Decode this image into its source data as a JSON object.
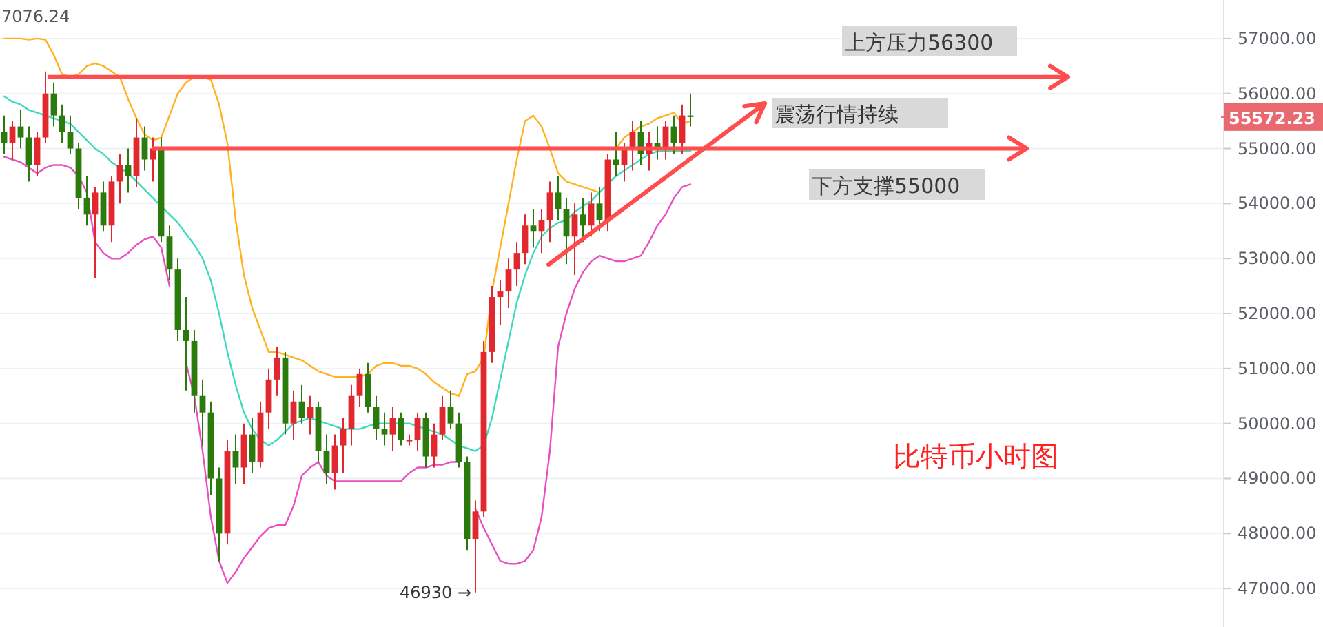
{
  "chart_data": {
    "type": "candlestick",
    "categories": [
      null,
      null,
      null,
      null,
      null,
      null,
      null,
      null,
      null,
      null,
      null,
      null,
      null,
      null,
      null,
      null,
      null,
      null,
      null,
      null,
      null,
      null,
      null,
      null,
      null,
      null,
      null,
      null,
      null,
      null,
      null,
      null,
      null,
      null,
      null,
      null,
      null,
      null,
      null,
      null,
      null,
      null,
      null,
      null,
      null,
      null,
      null,
      null,
      null,
      null,
      null,
      null,
      null,
      null,
      null,
      null,
      null,
      null,
      null,
      null,
      null,
      null,
      null,
      null,
      null,
      null,
      null,
      null,
      null,
      null,
      null,
      null,
      null,
      null,
      null,
      null,
      null,
      null,
      null,
      null,
      null,
      null,
      null,
      null,
      null,
      null,
      null,
      null,
      null,
      null,
      null,
      null,
      null,
      null,
      null,
      null,
      null,
      null,
      null,
      null,
      null,
      null,
      null,
      null,
      null,
      null,
      null,
      null,
      null,
      null,
      null,
      null,
      null,
      null,
      null,
      null,
      null,
      null,
      null,
      null,
      null,
      null,
      null,
      null,
      null,
      null,
      null,
      null,
      null,
      null,
      null,
      null,
      null,
      null,
      null,
      null,
      null,
      null,
      null,
      null,
      null,
      null,
      null,
      null,
      null,
      null,
      null,
      null
    ],
    "ohlc": [
      [
        55300,
        55600,
        54900,
        55100
      ],
      [
        55100,
        55500,
        54800,
        55400
      ],
      [
        55400,
        55700,
        55000,
        55200
      ],
      [
        55200,
        55400,
        54400,
        54700
      ],
      [
        54700,
        55300,
        54500,
        55200
      ],
      [
        55200,
        56400,
        55100,
        56000
      ],
      [
        56000,
        56200,
        55400,
        55600
      ],
      [
        55600,
        55800,
        55100,
        55300
      ],
      [
        55300,
        55600,
        54900,
        55000
      ],
      [
        55000,
        55100,
        53900,
        54100
      ],
      [
        54100,
        54500,
        53600,
        53800
      ],
      [
        53800,
        54300,
        52650,
        54200
      ],
      [
        54200,
        54400,
        53500,
        53600
      ],
      [
        53600,
        54500,
        53300,
        54400
      ],
      [
        54400,
        54900,
        54000,
        54700
      ],
      [
        54700,
        55000,
        54200,
        54500
      ],
      [
        54500,
        55550,
        54300,
        55200
      ],
      [
        55200,
        55400,
        54600,
        54800
      ],
      [
        54800,
        55200,
        54400,
        55000
      ],
      [
        55000,
        55200,
        53300,
        53400
      ],
      [
        53400,
        53600,
        52600,
        52800
      ],
      [
        52800,
        53000,
        51500,
        51700
      ],
      [
        51700,
        52300,
        50600,
        51500
      ],
      [
        51500,
        51700,
        50200,
        50500
      ],
      [
        50500,
        50800,
        49600,
        50200
      ],
      [
        50200,
        50400,
        48700,
        49000
      ],
      [
        49000,
        49200,
        47500,
        48000
      ],
      [
        48000,
        49700,
        47800,
        49500
      ],
      [
        49500,
        49800,
        48900,
        49200
      ],
      [
        49200,
        50000,
        48900,
        49800
      ],
      [
        49800,
        50100,
        49100,
        49300
      ],
      [
        49300,
        50400,
        49200,
        50200
      ],
      [
        50200,
        51000,
        49900,
        50800
      ],
      [
        50800,
        51400,
        50500,
        51200
      ],
      [
        51200,
        51300,
        49800,
        50000
      ],
      [
        50000,
        50600,
        49700,
        50400
      ],
      [
        50400,
        50700,
        50000,
        50100
      ],
      [
        50100,
        50500,
        49800,
        50300
      ],
      [
        50300,
        50400,
        49300,
        49500
      ],
      [
        49500,
        49800,
        48900,
        49100
      ],
      [
        49100,
        49800,
        48800,
        49600
      ],
      [
        49600,
        50100,
        49100,
        49900
      ],
      [
        49900,
        50700,
        49600,
        50500
      ],
      [
        50500,
        51000,
        50300,
        50900
      ],
      [
        50900,
        51100,
        50200,
        50300
      ],
      [
        50300,
        50500,
        49700,
        49900
      ],
      [
        49900,
        50200,
        49600,
        49800
      ],
      [
        49800,
        50300,
        49500,
        50100
      ],
      [
        50100,
        50200,
        49600,
        49700
      ],
      [
        49700,
        49800,
        49600,
        49700
      ],
      [
        49700,
        50200,
        49500,
        50100
      ],
      [
        50100,
        50200,
        49200,
        49400
      ],
      [
        49400,
        50000,
        49200,
        49800
      ],
      [
        49800,
        50500,
        49700,
        50300
      ],
      [
        50300,
        50600,
        49900,
        50000
      ],
      [
        50000,
        50200,
        49200,
        49300
      ],
      [
        49300,
        49400,
        47700,
        47900
      ],
      [
        47900,
        48600,
        46930,
        48400
      ],
      [
        48400,
        51500,
        48300,
        51300
      ],
      [
        51300,
        52500,
        51100,
        52300
      ],
      [
        52300,
        52600,
        51800,
        52400
      ],
      [
        52400,
        53000,
        52100,
        52800
      ],
      [
        52800,
        53300,
        52500,
        53100
      ],
      [
        53100,
        53800,
        52900,
        53600
      ],
      [
        53600,
        53900,
        53200,
        53500
      ],
      [
        53500,
        53900,
        53100,
        53700
      ],
      [
        53700,
        54400,
        53300,
        54200
      ],
      [
        54200,
        54500,
        53700,
        53900
      ],
      [
        53900,
        54100,
        52900,
        53400
      ],
      [
        53400,
        54000,
        52700,
        53800
      ],
      [
        53800,
        54100,
        53300,
        53600
      ],
      [
        53600,
        54200,
        53400,
        54000
      ],
      [
        54000,
        54300,
        53500,
        53700
      ],
      [
        53700,
        54900,
        53500,
        54800
      ],
      [
        54800,
        55300,
        54500,
        54700
      ],
      [
        54700,
        55100,
        54400,
        55000
      ],
      [
        55000,
        55500,
        54600,
        55300
      ],
      [
        55300,
        55500,
        54700,
        54900
      ],
      [
        54900,
        55300,
        54600,
        55100
      ],
      [
        55100,
        55400,
        54800,
        55000
      ],
      [
        55000,
        55500,
        54800,
        55400
      ],
      [
        55400,
        55600,
        54900,
        55100
      ],
      [
        55100,
        55800,
        54900,
        55600
      ],
      [
        55600,
        56000,
        55400,
        55572.23
      ],
      null,
      null,
      null,
      null,
      null,
      null,
      null,
      null,
      null,
      null,
      null,
      null,
      null,
      null,
      null,
      null,
      null,
      null,
      null,
      null,
      null,
      null,
      null,
      null,
      null,
      null,
      null,
      null,
      null,
      null,
      null,
      null,
      null,
      null,
      null,
      null,
      null,
      null,
      null,
      null,
      null,
      null,
      null,
      null,
      null,
      null,
      null,
      null,
      null,
      null,
      null,
      null,
      null,
      null,
      null,
      null,
      null,
      null,
      null,
      null,
      null,
      null,
      null,
      null
    ],
    "series": [
      {
        "type": "line",
        "color": "#ffb21d",
        "values": [
          57000,
          57000,
          57000,
          56980,
          57000,
          56980,
          56700,
          56350,
          56300,
          56350,
          56500,
          56550,
          56500,
          56400,
          56300,
          55900,
          55550,
          55250,
          55150,
          55200,
          55600,
          56000,
          56200,
          56300,
          56300,
          56250,
          55800,
          55100,
          53700,
          52700,
          52100,
          51700,
          51300,
          51300,
          51250,
          51200,
          51150,
          51050,
          50950,
          50900,
          50850,
          50850,
          50850,
          50850,
          50900,
          51050,
          51100,
          51100,
          51050,
          51050,
          51000,
          50900,
          50750,
          50650,
          50550,
          50500,
          50900,
          50950,
          51200,
          52400,
          53200,
          54000,
          54800,
          55500,
          55600,
          55400,
          55000,
          54550,
          54400,
          54350,
          54300,
          54250,
          54200,
          null,
          55000,
          55200,
          55300,
          55400,
          55450,
          55550,
          55600,
          55650,
          55450,
          55500,
          null,
          null,
          null,
          null,
          null,
          null,
          null,
          null,
          null,
          null,
          null,
          null,
          null,
          null,
          null,
          null,
          null,
          null,
          null,
          null,
          null,
          null,
          null,
          null,
          null,
          null,
          null,
          null,
          null,
          null,
          null,
          null,
          null,
          null,
          null,
          null,
          null,
          null,
          null,
          null,
          null,
          null,
          null,
          null,
          null,
          null,
          null,
          null,
          null,
          null,
          null,
          null,
          null,
          null,
          null,
          null,
          null,
          null,
          null,
          null,
          null,
          null,
          null,
          null
        ]
      },
      {
        "type": "line",
        "color": "#40d9c0",
        "values": [
          55950,
          55850,
          55800,
          55700,
          55650,
          55600,
          55550,
          55500,
          55450,
          55300,
          55150,
          55000,
          54900,
          54750,
          54650,
          54550,
          54400,
          54250,
          54100,
          53950,
          53800,
          53650,
          53450,
          53250,
          53000,
          52600,
          52000,
          51300,
          50700,
          50200,
          49900,
          49700,
          49600,
          49700,
          49850,
          50000,
          50050,
          50100,
          50050,
          50000,
          49950,
          49900,
          49900,
          49900,
          49950,
          50000,
          50000,
          50000,
          50000,
          50000,
          49950,
          49900,
          49850,
          49800,
          49700,
          49600,
          49550,
          49500,
          49600,
          50100,
          50800,
          51500,
          52200,
          52700,
          53100,
          53400,
          53550,
          53650,
          53700,
          53850,
          53950,
          54050,
          54200,
          54350,
          54500,
          54600,
          54700,
          54800,
          54900,
          54950,
          54950,
          54950,
          54950,
          54950,
          null,
          null,
          null,
          null,
          null,
          null,
          null,
          null,
          null,
          null,
          null,
          null,
          null,
          null,
          null,
          null,
          null,
          null,
          null,
          null,
          null,
          null,
          null,
          null,
          null,
          null,
          null,
          null,
          null,
          null,
          null,
          null,
          null,
          null,
          null,
          null,
          null,
          null,
          null,
          null,
          null,
          null,
          null,
          null,
          null,
          null,
          null,
          null,
          null,
          null,
          null,
          null,
          null,
          null,
          null,
          null,
          null,
          null,
          null,
          null,
          null,
          null,
          null,
          null
        ]
      },
      {
        "type": "line",
        "color": "#e94fc0",
        "values": [
          54850,
          54800,
          54750,
          54650,
          54550,
          54650,
          54700,
          54700,
          54650,
          54500,
          54200,
          53300,
          53100,
          53000,
          53000,
          53100,
          53250,
          53350,
          53400,
          53200,
          52500,
          null,
          51100,
          50500,
          49500,
          48300,
          47500,
          47100,
          47300,
          47550,
          47750,
          47950,
          48100,
          48150,
          48150,
          48500,
          49050,
          49200,
          49300,
          49050,
          48950,
          48950,
          48950,
          48950,
          48950,
          48950,
          48950,
          48950,
          48950,
          49100,
          49200,
          49200,
          49250,
          49250,
          49300,
          49300,
          null,
          48450,
          48100,
          47800,
          47500,
          47450,
          47450,
          47500,
          47700,
          48300,
          49500,
          51400,
          52000,
          52450,
          52750,
          52950,
          53050,
          53000,
          52950,
          52950,
          53000,
          53050,
          53300,
          53600,
          53800,
          54100,
          54300,
          54350,
          null,
          null,
          null,
          null,
          null,
          null,
          null,
          null,
          null,
          null,
          null,
          null,
          null,
          null,
          null,
          null,
          null,
          null,
          null,
          null,
          null,
          null,
          null,
          null,
          null,
          null,
          null,
          null,
          null,
          null,
          null,
          null,
          null,
          null,
          null,
          null,
          null,
          null,
          null,
          null,
          null,
          null,
          null,
          null,
          null,
          null,
          null,
          null,
          null,
          null,
          null,
          null,
          null,
          null,
          null,
          null,
          null,
          null,
          null,
          null,
          null,
          null,
          null,
          null
        ]
      }
    ],
    "ylim": [
      46300,
      57700
    ],
    "yticks": [
      {
        "value": 47000,
        "label": "47000.00"
      },
      {
        "value": 48000,
        "label": "48000.00"
      },
      {
        "value": 49000,
        "label": "49000.00"
      },
      {
        "value": 50000,
        "label": "50000.00"
      },
      {
        "value": 51000,
        "label": "51000.00"
      },
      {
        "value": 52000,
        "label": "52000.00"
      },
      {
        "value": 53000,
        "label": "53000.00"
      },
      {
        "value": 54000,
        "label": "54000.00"
      },
      {
        "value": 55000,
        "label": "55000.00"
      },
      {
        "value": 56000,
        "label": "56000.00"
      },
      {
        "value": 57000,
        "label": "57000.00"
      }
    ],
    "grid": "y",
    "tick_labels": "y",
    "ref_lines": [
      {
        "axis": "y",
        "value": 56300,
        "label": "上方压力56300",
        "color": "#ff4d4d"
      },
      {
        "axis": "y",
        "value": 55000,
        "label": "下方支撑55000",
        "color": "#ff4d4d"
      }
    ],
    "annotations": [
      "7076.24",
      "46930 →",
      "震荡行情持续",
      "比特币小时图",
      "55572.23"
    ]
  }
}
